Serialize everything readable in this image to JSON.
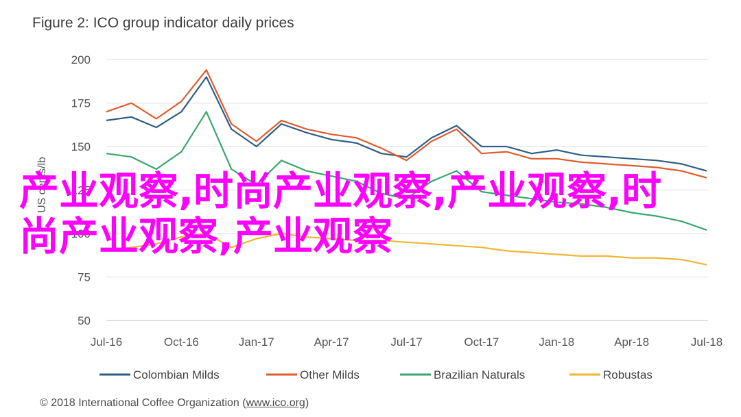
{
  "title": "Figure 2: ICO group indicator daily prices",
  "footer": {
    "prefix": "© 2018 International Coffee Organization (",
    "link": "www.ico.org",
    "suffix": ")"
  },
  "overlay_text": "产业观察,时尚产业观察,产业观察,时尚产业观察,产业观察",
  "chart_data": {
    "type": "line",
    "title": "Figure 2: ICO group indicator daily prices",
    "xlabel": "",
    "ylabel": "US cents/lb",
    "ylim": [
      50,
      200
    ],
    "yticks": [
      50,
      75,
      100,
      125,
      150,
      175,
      200
    ],
    "xticks": [
      "Jul-16",
      "Oct-16",
      "Jan-17",
      "Apr-17",
      "Jul-17",
      "Oct-17",
      "Jan-18",
      "Apr-18",
      "Jul-18"
    ],
    "grid": true,
    "legend": "bottom",
    "x": [
      "Jul-16",
      "Aug-16",
      "Sep-16",
      "Oct-16",
      "Nov-16",
      "Dec-16",
      "Jan-17",
      "Feb-17",
      "Mar-17",
      "Apr-17",
      "May-17",
      "Jun-17",
      "Jul-17",
      "Aug-17",
      "Sep-17",
      "Oct-17",
      "Nov-17",
      "Dec-17",
      "Jan-18",
      "Feb-18",
      "Mar-18",
      "Apr-18",
      "May-18",
      "Jun-18",
      "Jul-18"
    ],
    "series": [
      {
        "name": "Colombian Milds",
        "color": "#2e5d85",
        "values": [
          165,
          167,
          161,
          170,
          190,
          160,
          150,
          163,
          158,
          154,
          152,
          146,
          144,
          155,
          162,
          150,
          150,
          146,
          148,
          145,
          144,
          143,
          142,
          140,
          136
        ]
      },
      {
        "name": "Other Milds",
        "color": "#e05b2b",
        "values": [
          170,
          175,
          166,
          176,
          194,
          163,
          153,
          165,
          160,
          157,
          155,
          149,
          142,
          153,
          160,
          146,
          147,
          143,
          143,
          141,
          140,
          139,
          138,
          136,
          132
        ]
      },
      {
        "name": "Brazilian Naturals",
        "color": "#3aa66a",
        "values": [
          146,
          144,
          137,
          147,
          170,
          137,
          128,
          142,
          136,
          133,
          130,
          123,
          120,
          130,
          136,
          124,
          122,
          120,
          118,
          117,
          115,
          112,
          110,
          107,
          102
        ]
      },
      {
        "name": "Robustas",
        "color": "#f2b531",
        "values": [
          90,
          92,
          94,
          98,
          100,
          92,
          97,
          100,
          98,
          97,
          96,
          96,
          95,
          94,
          93,
          92,
          90,
          89,
          88,
          87,
          87,
          86,
          86,
          85,
          82
        ]
      }
    ]
  }
}
